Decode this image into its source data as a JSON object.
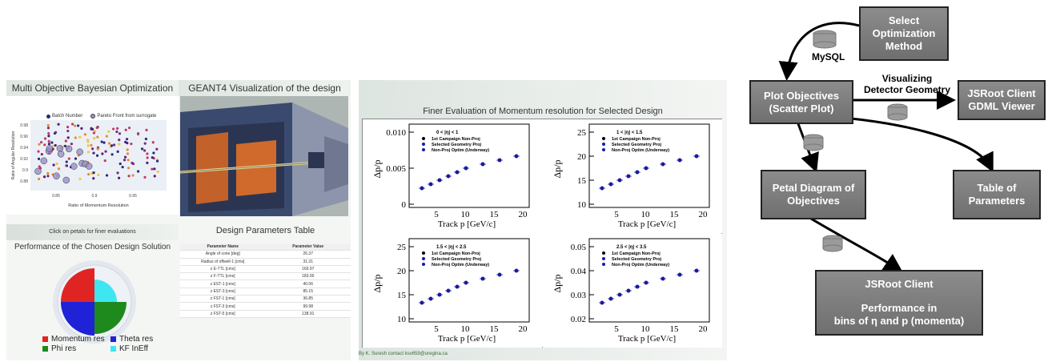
{
  "left": {
    "mobo_title": "Multi Objective Bayesian Optimization",
    "geant_title": "GEANT4 Visualization of the design",
    "scatter_legend": [
      "Batch Number",
      "Pareto Front from surrogate"
    ],
    "scatter_ylabel": "Ratio of Angular Resolution",
    "scatter_xlabel": "Ratio of Momentum Resolution",
    "scatter_yticks": [
      "0.98",
      "0.96",
      "0.94",
      "0.92",
      "0.9",
      "0.88"
    ],
    "scatter_xticks": [
      "0.85",
      "0.9",
      "0.95"
    ],
    "click_note": "Click on petals for finer evaluations",
    "performance_title": "Performance of the Chosen Design Solution",
    "petal_legend": [
      "Momentum res",
      "Theta res",
      "Phi res",
      "KF InEff"
    ],
    "petal_colors": [
      "#e02424",
      "#1f22d6",
      "#1e8a1e",
      "#3ee6f2"
    ],
    "table_title": "Design Parameters Table",
    "table_headers": [
      "Parameter Name",
      "Parameter Value"
    ],
    "table_rows": [
      [
        "Angle of cone [deg]",
        "26.37"
      ],
      [
        "Radius of offwell-1 [cms]",
        "31.31"
      ],
      [
        "z E-TTL [cms]",
        "169.97"
      ],
      [
        "z F-TTL [cms]",
        "183.00"
      ],
      [
        "z EST-1 [cms]",
        "40.06"
      ],
      [
        "z EST-3 [cms]",
        "85.15"
      ],
      [
        "z FST-1 [cms]",
        "36.85"
      ],
      [
        "z FST-3 [cms]",
        "99.98"
      ],
      [
        "z FST-5 [cms]",
        "138.91"
      ]
    ]
  },
  "middle": {
    "title": "Finer Evaluation of Momentum resolution for Selected Design",
    "footer": "By K. Suresh contact ksv659@uregina.ca",
    "plots": [
      {
        "eta": "0 < |η| < 1",
        "yticks": [
          "0.010",
          "0.005",
          "0"
        ]
      },
      {
        "eta": "1 < |η| < 1.5",
        "yticks": [
          "25",
          "20",
          "15",
          "10"
        ]
      },
      {
        "eta": "1.5 < |η| < 2.5",
        "yticks": [
          "25",
          "20",
          "15",
          "10"
        ]
      },
      {
        "eta": "2.5 < |η| < 3.5",
        "yticks": [
          "0.05",
          "0.04",
          "0.03",
          "0.02"
        ]
      }
    ],
    "legend": [
      "1st Campaign Non-Proj",
      "Selected Geometry Proj",
      "Non-Proj Optim (Underway)"
    ],
    "xlabel": "Track p [GeV/c]",
    "ylabel": "Δp/p",
    "xticks": [
      "5",
      "10",
      "15",
      "20"
    ]
  },
  "flow": {
    "select": "Select\nOptimization\nMethod",
    "mysql": "MySQL",
    "plot_obj": "Plot Objectives\n(Scatter Plot)",
    "visualizing": "Visualizing\nDetector Geometry",
    "jsroot_gdml": "JSRoot Client\nGDML Viewer",
    "petal": "Petal Diagram of\nObjectives",
    "table": "Table of\nParameters",
    "jsroot_client": "JSRoot Client",
    "performance": "Performance in\nbins of η and p (momenta)"
  }
}
